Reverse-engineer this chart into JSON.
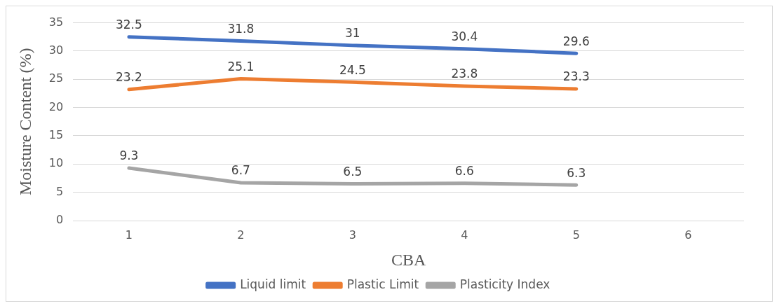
{
  "chart_data": {
    "type": "line",
    "xlabel": "CBA",
    "ylabel": "Moisture Content (%)",
    "categories": [
      "1",
      "2",
      "3",
      "4",
      "5",
      "6"
    ],
    "series": [
      {
        "name": "Liquid limit",
        "color": "#4472c4",
        "values": [
          32.5,
          31.8,
          31,
          30.4,
          29.6,
          null
        ]
      },
      {
        "name": "Plastic Limit",
        "color": "#ed7d31",
        "values": [
          23.2,
          25.1,
          24.5,
          23.8,
          23.3,
          null
        ]
      },
      {
        "name": "Plasticity Index",
        "color": "#a5a5a5",
        "values": [
          9.3,
          6.7,
          6.5,
          6.6,
          6.3,
          null
        ]
      }
    ],
    "ylim": [
      0,
      35
    ],
    "yticks": [
      0,
      5,
      10,
      15,
      20,
      25,
      30,
      35
    ],
    "grid": "y",
    "legend": "bottom",
    "marker": "none",
    "line_style": "solid",
    "data_labels": true
  }
}
